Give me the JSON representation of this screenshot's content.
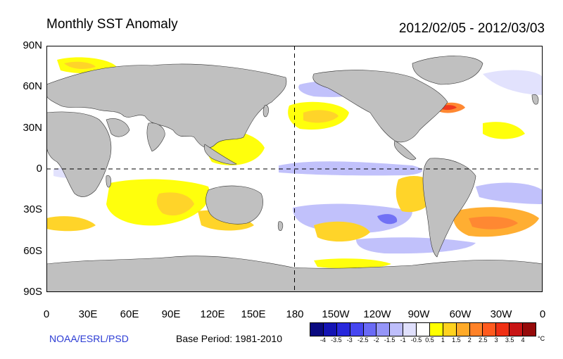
{
  "header": {
    "title": "Monthly SST Anomaly",
    "period": "2012/02/05 - 2012/03/03"
  },
  "map": {
    "land_color": "#c0c0c0",
    "ocean_color": "#ffffff",
    "y_ticks": [
      "90N",
      "60N",
      "30N",
      "0",
      "30S",
      "60S",
      "90S"
    ],
    "x_ticks": [
      "0",
      "30E",
      "60E",
      "90E",
      "120E",
      "150E",
      "180",
      "150W",
      "120W",
      "90W",
      "60W",
      "30W",
      "0"
    ],
    "anomaly_regions": [
      {
        "name": "north-pacific-warm",
        "level": "0.5-1.5"
      },
      {
        "name": "southeast-pacific-warm",
        "level": "0.5-1.5"
      },
      {
        "name": "south-atlantic-warm",
        "level": "1-2"
      },
      {
        "name": "gulf-stream-hot",
        "level": "2-3.5"
      },
      {
        "name": "equatorial-pacific-cool",
        "level": "-0.5--1"
      },
      {
        "name": "south-indian-warm",
        "level": "0.5-1.5"
      }
    ]
  },
  "footer": {
    "credit": "NOAA/ESRL/PSD",
    "base_period": "Base Period: 1981-2010"
  },
  "colorbar": {
    "colors": [
      "#0a0a80",
      "#1414b4",
      "#2828dc",
      "#4646f0",
      "#6a6af5",
      "#9595f8",
      "#bebefb",
      "#e0e0fd",
      "#ffffff",
      "#ffff00",
      "#ffd21e",
      "#ffaa28",
      "#ff8228",
      "#ff5a1e",
      "#f03014",
      "#c81414",
      "#960a0a"
    ],
    "labels": [
      "-4",
      "-3.5",
      "-3",
      "-2.5",
      "-2",
      "-1.5",
      "-1",
      "-0.5",
      "0.5",
      "1",
      "1.5",
      "2",
      "2.5",
      "3",
      "3.5",
      "4"
    ],
    "unit": "°C"
  }
}
